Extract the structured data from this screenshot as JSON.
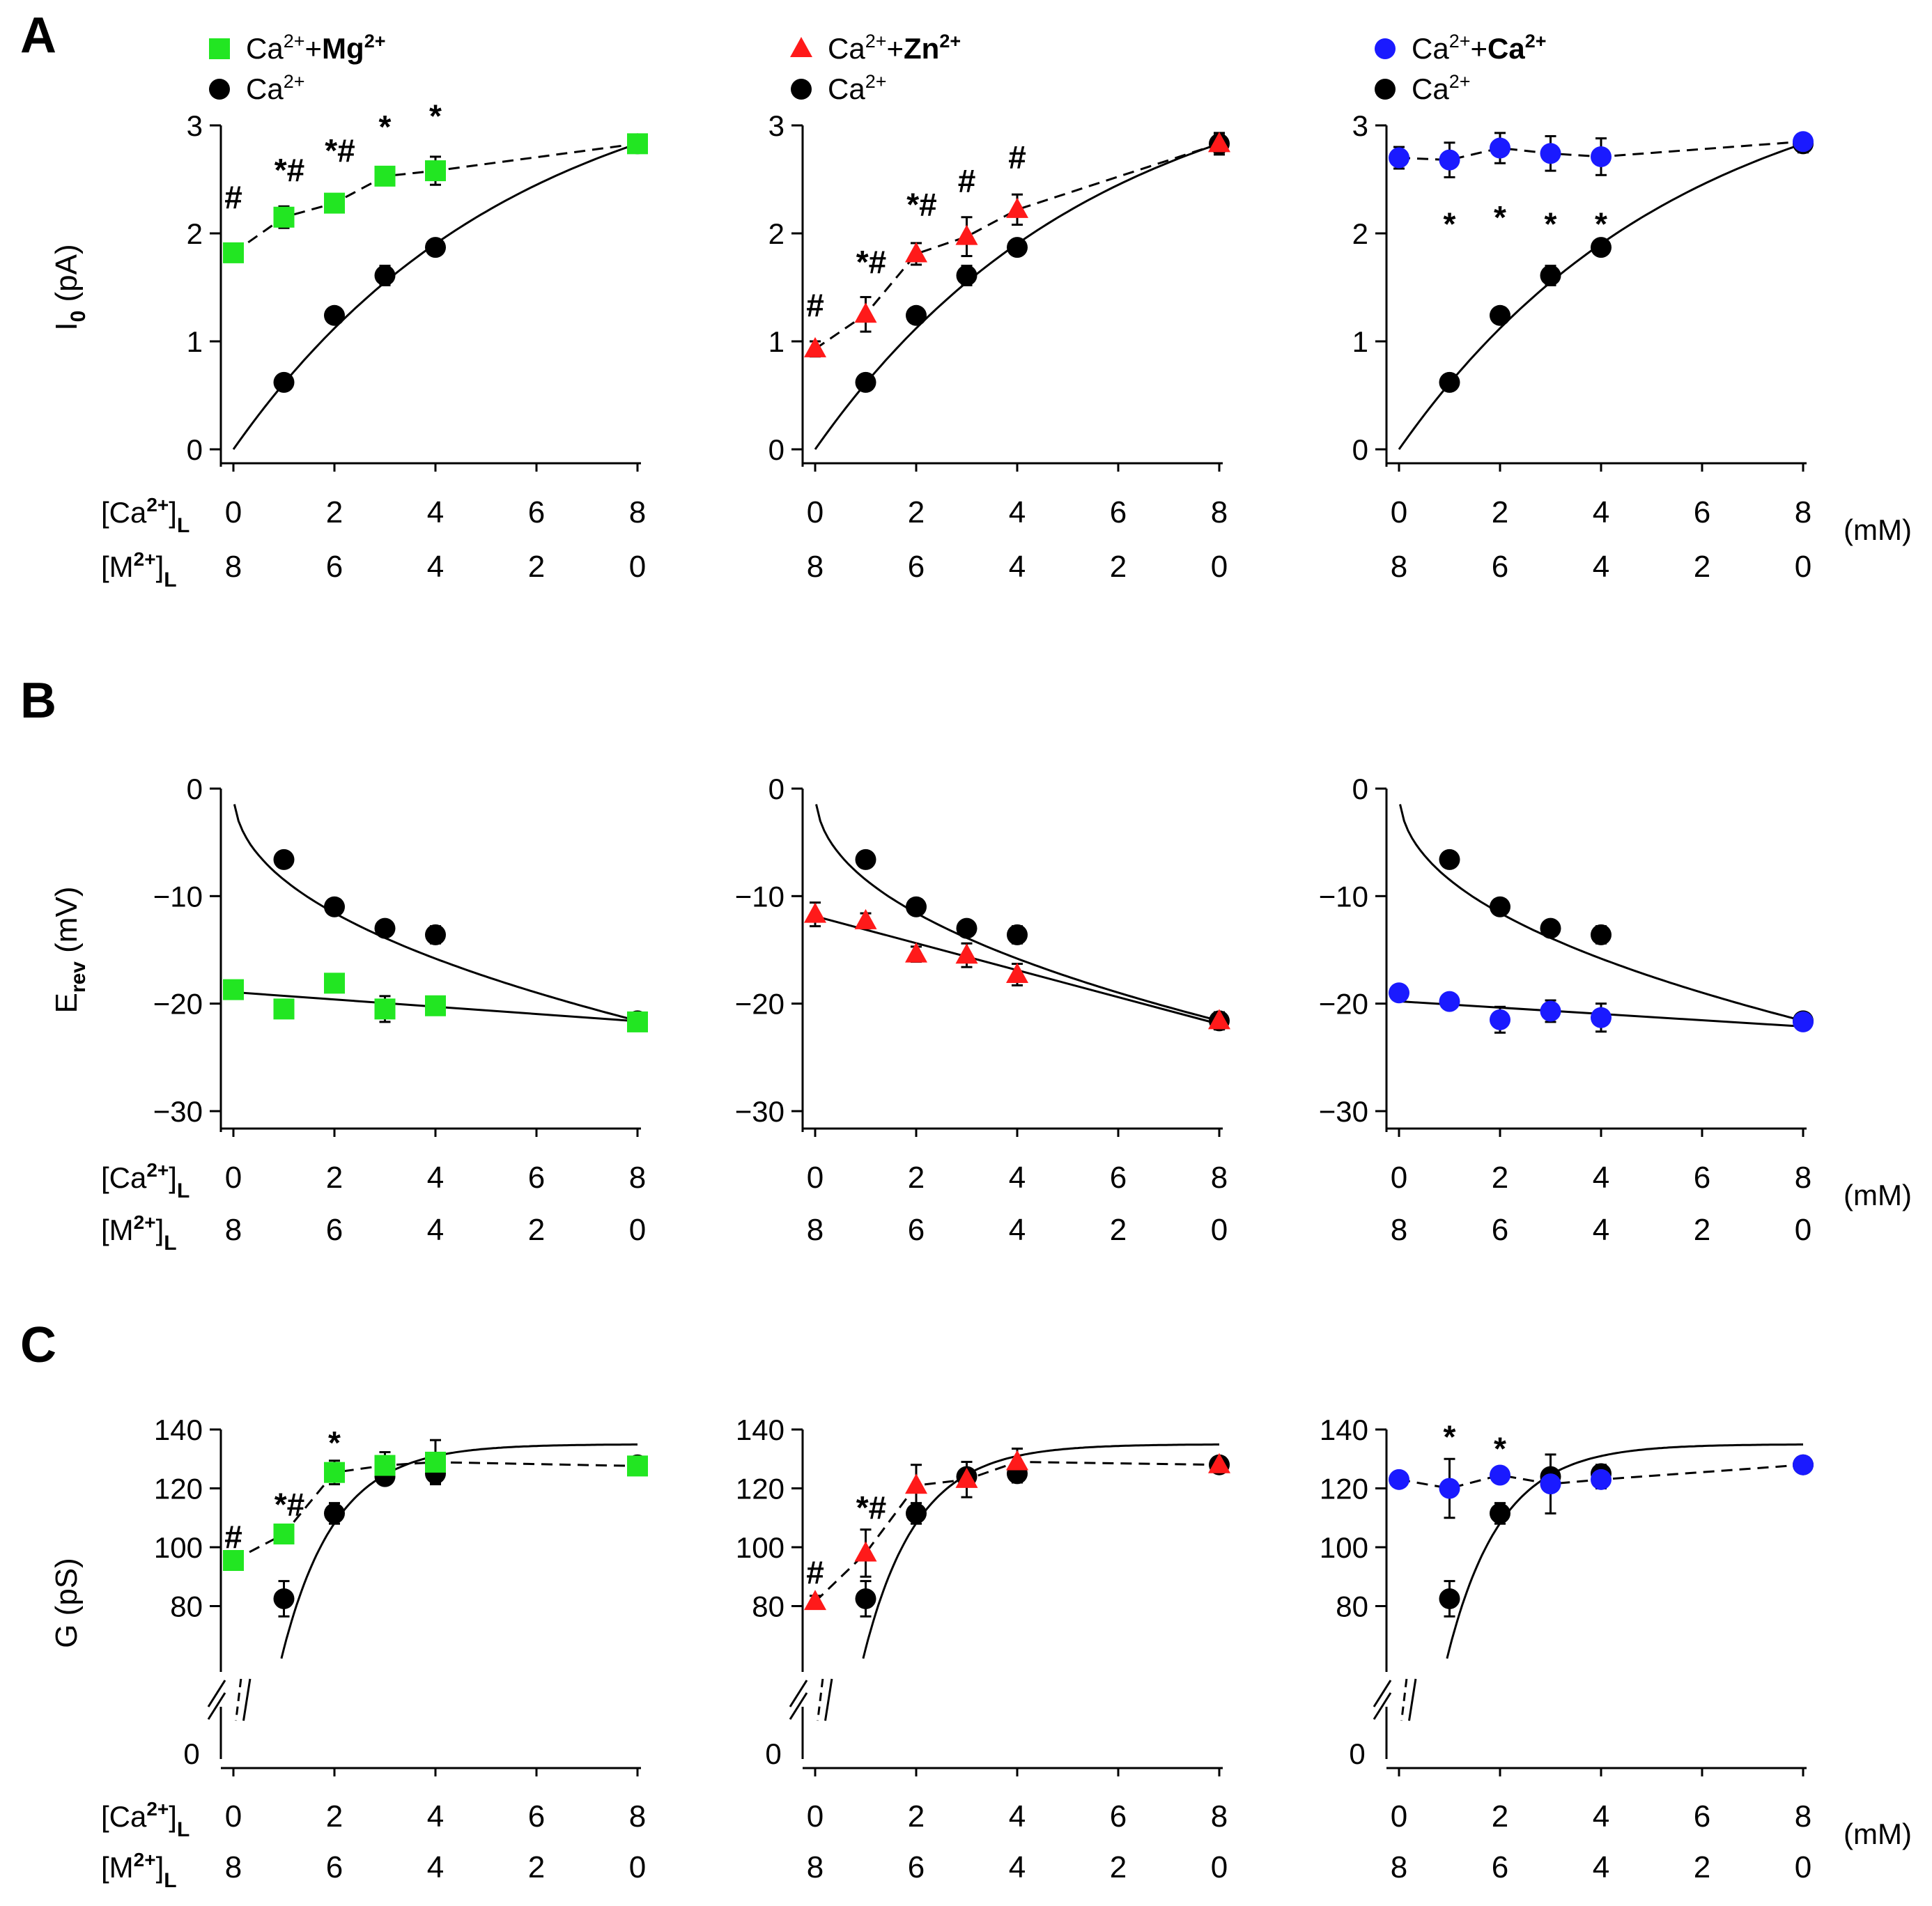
{
  "colors": {
    "mg": "#22e622",
    "zn": "#ff1a1a",
    "ca": "#1a1aff",
    "ctrl": "#000000"
  },
  "labels": {
    "ca_row": "[Ca",
    "m_row": "[M",
    "sup": "2+",
    "sub": "L",
    "unit": "(mM)",
    "legend_ca": "Ca",
    "legend_plus": "+"
  },
  "chart_data": [
    {
      "type": "scatter",
      "panel": "A",
      "ylabel": "I",
      "ylabel_sub": "0",
      "ylabel_rest": " (pA)",
      "ylim": [
        0,
        3
      ],
      "yticks": [
        0,
        1,
        2,
        3
      ],
      "xlim": [
        0,
        8
      ],
      "x_ticks_ca": [
        0,
        2,
        4,
        6,
        8
      ],
      "x_ticks_m": [
        8,
        6,
        4,
        2,
        0
      ],
      "columns": [
        {
          "metal": "Mg",
          "color_key": "mg",
          "marker": "square",
          "test": {
            "x": [
              0,
              1,
              2,
              3,
              4,
              8
            ],
            "y": [
              1.82,
              2.15,
              2.28,
              2.53,
              2.58,
              2.83
            ],
            "err": [
              0.04,
              0.1,
              0.06,
              0.06,
              0.13,
              0.07
            ]
          },
          "ctrl": {
            "x": [
              1,
              2,
              3,
              4,
              8
            ],
            "y": [
              0.62,
              1.24,
              1.61,
              1.87,
              2.83
            ],
            "err": [
              0.05,
              0.07,
              0.09,
              0.06,
              0.08
            ]
          },
          "annotations": [
            {
              "x": 0,
              "y": 2.35,
              "text": "#"
            },
            {
              "x": 1,
              "y": 2.6,
              "text": "*#"
            },
            {
              "x": 2,
              "y": 2.78,
              "text": "*#"
            },
            {
              "x": 3,
              "y": 3.0,
              "text": "*"
            },
            {
              "x": 4,
              "y": 3.1,
              "text": "*"
            }
          ]
        },
        {
          "metal": "Zn",
          "color_key": "zn",
          "marker": "triangle",
          "test": {
            "x": [
              0,
              1,
              2,
              3,
              4,
              8
            ],
            "y": [
              0.93,
              1.25,
              1.81,
              1.97,
              2.22,
              2.83
            ],
            "err": [
              0.07,
              0.16,
              0.1,
              0.18,
              0.14,
              0.1
            ]
          },
          "ctrl": {
            "x": [
              1,
              2,
              3,
              4,
              8
            ],
            "y": [
              0.62,
              1.24,
              1.61,
              1.87,
              2.83
            ],
            "err": [
              0.05,
              0.07,
              0.09,
              0.06,
              0.08
            ]
          },
          "annotations": [
            {
              "x": 0,
              "y": 1.35,
              "text": "#"
            },
            {
              "x": 1,
              "y": 1.75,
              "text": "*#"
            },
            {
              "x": 2,
              "y": 2.28,
              "text": "*#"
            },
            {
              "x": 3,
              "y": 2.5,
              "text": "#"
            },
            {
              "x": 4,
              "y": 2.72,
              "text": "#"
            }
          ]
        },
        {
          "metal": "Ca",
          "color_key": "ca",
          "marker": "circle",
          "test": {
            "x": [
              0,
              1,
              2,
              3,
              4,
              8
            ],
            "y": [
              2.7,
              2.68,
              2.79,
              2.74,
              2.71,
              2.85
            ],
            "err": [
              0.1,
              0.16,
              0.14,
              0.16,
              0.17,
              0.06
            ]
          },
          "ctrl": {
            "x": [
              1,
              2,
              3,
              4,
              8
            ],
            "y": [
              0.62,
              1.24,
              1.61,
              1.87,
              2.83
            ],
            "err": [
              0.05,
              0.07,
              0.09,
              0.06,
              0.08
            ]
          },
          "annotations": [
            {
              "x": 1,
              "y": 2.1,
              "text": "*"
            },
            {
              "x": 2,
              "y": 2.16,
              "text": "*"
            },
            {
              "x": 3,
              "y": 2.1,
              "text": "*"
            },
            {
              "x": 4,
              "y": 2.1,
              "text": "*"
            }
          ]
        }
      ]
    },
    {
      "type": "scatter",
      "panel": "B",
      "ylabel": "E",
      "ylabel_sub": "rev",
      "ylabel_rest": " (mV)",
      "ylim": [
        -30,
        0
      ],
      "yticks": [
        0,
        -10,
        -20,
        -30
      ],
      "ytick_labels": [
        "0",
        "−10",
        "−20",
        "−30"
      ],
      "xlim": [
        0,
        8
      ],
      "x_ticks_ca": [
        0,
        2,
        4,
        6,
        8
      ],
      "x_ticks_m": [
        8,
        6,
        4,
        2,
        0
      ],
      "columns": [
        {
          "metal": "Mg",
          "color_key": "mg",
          "marker": "square",
          "test": {
            "x": [
              0,
              1,
              2,
              3,
              4,
              8
            ],
            "y": [
              -18.7,
              -20.5,
              -18.1,
              -20.5,
              -20.2,
              -21.7
            ],
            "err": [
              0.5,
              0.5,
              0.6,
              1.2,
              0.6,
              0.7
            ]
          },
          "ctrl": {
            "x": [
              1,
              2,
              3,
              4,
              8
            ],
            "y": [
              -6.6,
              -11.0,
              -13.0,
              -13.6,
              -21.6
            ],
            "err": [
              0.4,
              0.6,
              0.6,
              0.8,
              0.7
            ]
          },
          "annotations": []
        },
        {
          "metal": "Zn",
          "color_key": "zn",
          "marker": "triangle",
          "test": {
            "x": [
              0,
              1,
              2,
              3,
              4,
              8
            ],
            "y": [
              -11.7,
              -12.3,
              -15.4,
              -15.5,
              -17.3,
              -21.6
            ],
            "err": [
              1.1,
              0.7,
              0.7,
              1.1,
              1.0,
              0.8
            ]
          },
          "ctrl": {
            "x": [
              1,
              2,
              3,
              4,
              8
            ],
            "y": [
              -6.6,
              -11.0,
              -13.0,
              -13.6,
              -21.6
            ],
            "err": [
              0.4,
              0.6,
              0.6,
              0.8,
              0.7
            ]
          },
          "annotations": []
        },
        {
          "metal": "Ca",
          "color_key": "ca",
          "marker": "circle",
          "test": {
            "x": [
              0,
              1,
              2,
              3,
              4,
              8
            ],
            "y": [
              -19.0,
              -19.8,
              -21.5,
              -20.7,
              -21.3,
              -21.7
            ],
            "err": [
              0.6,
              0.6,
              1.2,
              1.0,
              1.3,
              0.6
            ]
          },
          "ctrl": {
            "x": [
              1,
              2,
              3,
              4,
              8
            ],
            "y": [
              -6.6,
              -11.0,
              -13.0,
              -13.6,
              -21.6
            ],
            "err": [
              0.4,
              0.6,
              0.6,
              0.8,
              0.7
            ]
          },
          "annotations": []
        }
      ]
    },
    {
      "type": "scatter",
      "panel": "C",
      "ylabel": "G (pS)",
      "ylabel_sub": "",
      "ylabel_rest": "",
      "ylim": [
        60,
        140
      ],
      "yticks": [
        80,
        100,
        120,
        140
      ],
      "ytick_labels": [
        "80",
        "100",
        "120",
        "140"
      ],
      "y_break_label": "0",
      "xlim": [
        0,
        8
      ],
      "x_ticks_ca": [
        0,
        2,
        4,
        6,
        8
      ],
      "x_ticks_m": [
        8,
        6,
        4,
        2,
        0
      ],
      "columns": [
        {
          "metal": "Mg",
          "color_key": "mg",
          "marker": "square",
          "test": {
            "x": [
              0,
              1,
              2,
              3,
              4,
              8
            ],
            "y": [
              95.5,
              104.5,
              125.4,
              127.8,
              128.9,
              127.6
            ],
            "err": [
              1.5,
              2.0,
              4.0,
              4.5,
              7.5,
              2.0
            ]
          },
          "ctrl": {
            "x": [
              1,
              2,
              3,
              4,
              8
            ],
            "y": [
              82.5,
              111.5,
              124.0,
              125.0,
              128.0
            ],
            "err": [
              6.0,
              3.5,
              2.5,
              3.0,
              2.5
            ]
          },
          "annotations": [
            {
              "x": 0,
              "y": 104,
              "text": "#"
            },
            {
              "x": 1,
              "y": 115,
              "text": "*#"
            },
            {
              "x": 2,
              "y": 136,
              "text": "*"
            }
          ]
        },
        {
          "metal": "Zn",
          "color_key": "zn",
          "marker": "triangle",
          "test": {
            "x": [
              0,
              1,
              2,
              3,
              4,
              8
            ],
            "y": [
              81.5,
              98.0,
              121.0,
              123.0,
              129.0,
              128.0
            ],
            "err": [
              2.0,
              8.0,
              7.0,
              6.0,
              4.5,
              2.5
            ]
          },
          "ctrl": {
            "x": [
              1,
              2,
              3,
              4,
              8
            ],
            "y": [
              82.5,
              111.5,
              124.0,
              125.0,
              128.0
            ],
            "err": [
              6.0,
              3.5,
              2.5,
              3.0,
              2.5
            ]
          },
          "annotations": [
            {
              "x": 0,
              "y": 92,
              "text": "#"
            },
            {
              "x": 1,
              "y": 114,
              "text": "*#"
            }
          ]
        },
        {
          "metal": "Ca",
          "color_key": "ca",
          "marker": "circle",
          "test": {
            "x": [
              0,
              1,
              2,
              3,
              4,
              8
            ],
            "y": [
              123.0,
              120.0,
              124.5,
              121.5,
              123.0,
              128.0
            ],
            "err": [
              1.5,
              10.0,
              2.5,
              10.0,
              3.0,
              2.0
            ]
          },
          "ctrl": {
            "x": [
              1,
              2,
              3,
              4,
              8
            ],
            "y": [
              82.5,
              111.5,
              124.0,
              125.0,
              128.0
            ],
            "err": [
              6.0,
              3.5,
              2.5,
              3.0,
              2.5
            ]
          },
          "annotations": [
            {
              "x": 1,
              "y": 138,
              "text": "*"
            },
            {
              "x": 2,
              "y": 134,
              "text": "*"
            }
          ]
        }
      ]
    }
  ]
}
